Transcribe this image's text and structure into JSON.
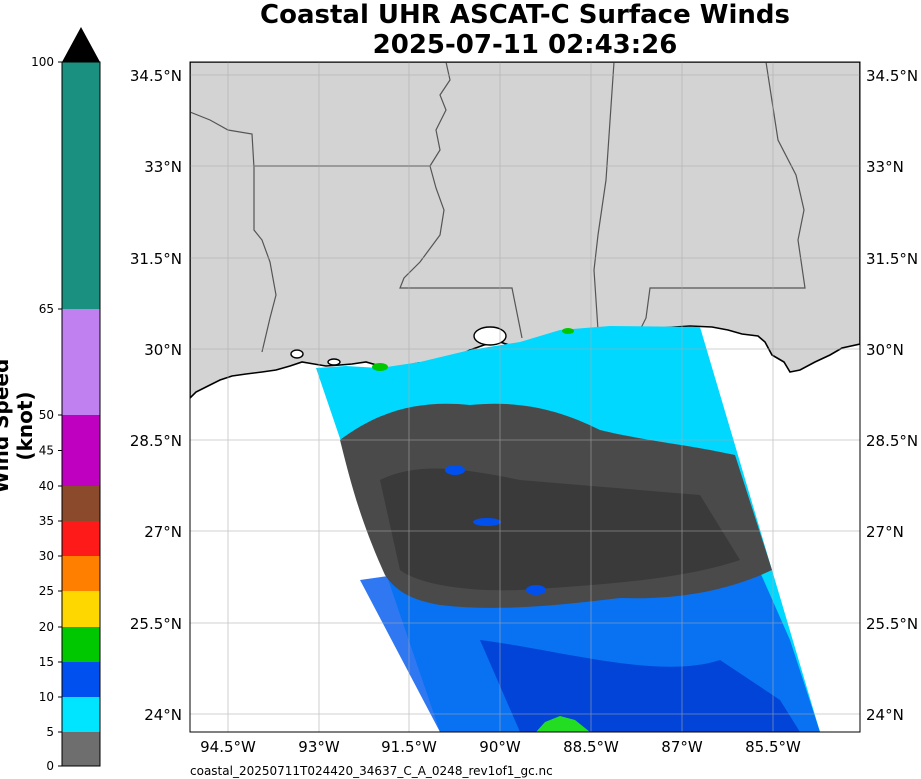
{
  "title_line1": "Coastal UHR ASCAT-C Surface Winds",
  "title_line2": "2025-07-11 02:43:26",
  "footer": "coastal_20250711T024420_34637_C_A_0248_rev1of1_gc.nc",
  "colorbar": {
    "label": "Wind Speed (knot)",
    "ticks": [
      "0",
      "5",
      "10",
      "15",
      "20",
      "25",
      "30",
      "35",
      "40",
      "45",
      "50",
      "65",
      "100"
    ],
    "bands": [
      {
        "from": 0,
        "to": 5,
        "color": "#6e6e6e"
      },
      {
        "from": 5,
        "to": 10,
        "color": "#00e5ff"
      },
      {
        "from": 10,
        "to": 15,
        "color": "#0050f0"
      },
      {
        "from": 15,
        "to": 20,
        "color": "#00c800"
      },
      {
        "from": 20,
        "to": 25,
        "color": "#ffd700"
      },
      {
        "from": 25,
        "to": 30,
        "color": "#ff7f00"
      },
      {
        "from": 30,
        "to": 35,
        "color": "#ff1a1a"
      },
      {
        "from": 35,
        "to": 40,
        "color": "#8b4a2b"
      },
      {
        "from": 40,
        "to": 50,
        "color": "#c000c0"
      },
      {
        "from": 50,
        "to": 65,
        "color": "#c080f0"
      },
      {
        "from": 65,
        "to": 100,
        "color": "#1a9080"
      }
    ]
  },
  "map": {
    "lon_ticks": [
      "94.5°W",
      "93°W",
      "91.5°W",
      "90°W",
      "88.5°W",
      "87°W",
      "85.5°W"
    ],
    "lat_ticks": [
      "34.5°N",
      "33°N",
      "31.5°N",
      "30°N",
      "28.5°N",
      "27°N",
      "25.5°N",
      "24°N"
    ],
    "land_color": "#d3d3d3",
    "ocean_color": "#ffffff",
    "swath_low_color": "#4a4a4a",
    "swath_mid_color": "#00d8ff",
    "swath_high_color": "#0040e0",
    "grid": true
  }
}
